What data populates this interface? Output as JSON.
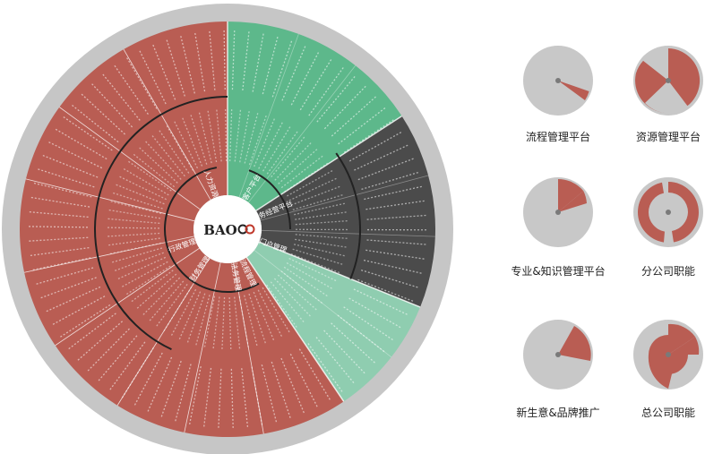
{
  "center_logo": "BAO",
  "colors": {
    "outer_ring": "#c6c6c6",
    "red": "#b95d53",
    "green_dark": "#5db88b",
    "green_light": "#8fcdb0",
    "gray_dark": "#4b4b4b",
    "center_bg": "#ffffff",
    "mini_bg": "#c8c8c8",
    "mini_center": "#7a7a7a"
  },
  "inner_ring_labels": [
    "人力资源",
    "行政管理",
    "财务管理",
    "法务管理",
    "流程管理",
    "门户管理",
    "业务经营平台",
    "客户平台"
  ],
  "mini_charts": [
    {
      "label": "流程管理平台",
      "icon": "pie-icon"
    },
    {
      "label": "资源管理平台",
      "icon": "pie-icon"
    },
    {
      "label": "专业&知识管理平台",
      "icon": "pie-icon"
    },
    {
      "label": "分公司职能",
      "icon": "ring-icon"
    },
    {
      "label": "新生意&品牌推广",
      "icon": "pie-icon"
    },
    {
      "label": "总公司职能",
      "icon": "ring-icon"
    }
  ]
}
